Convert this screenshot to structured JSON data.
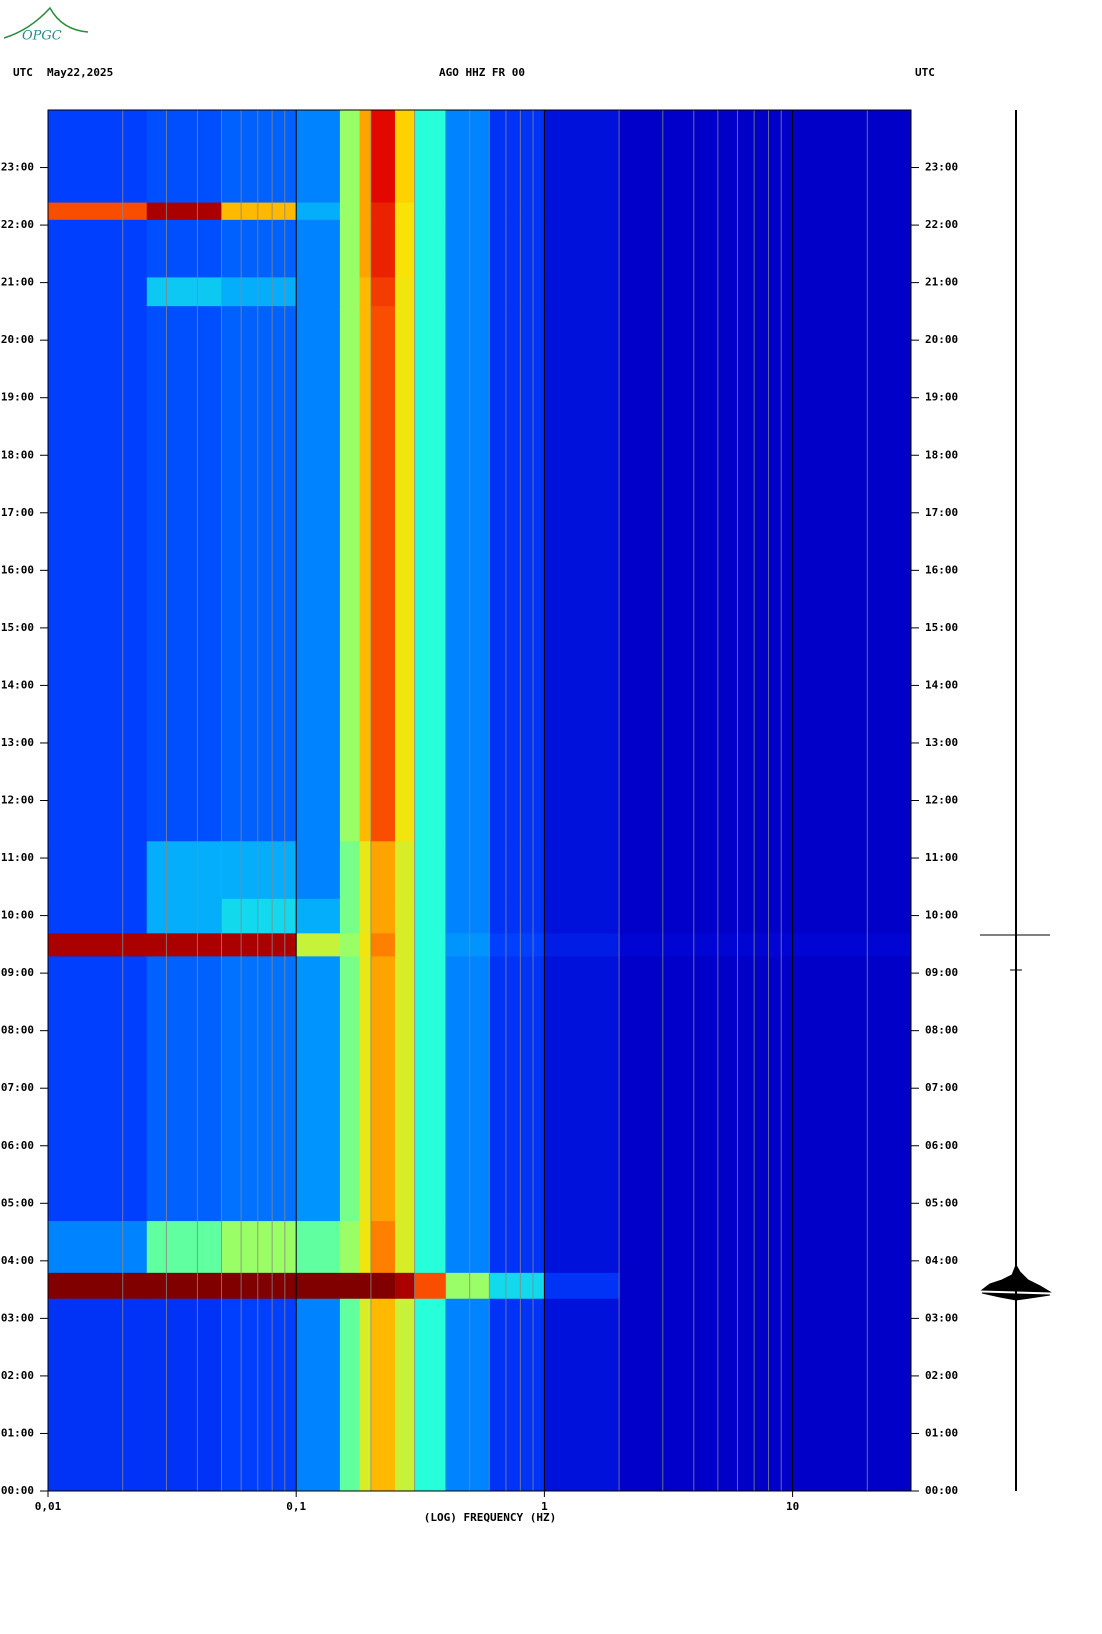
{
  "logo": "OPGC",
  "chart_data": {
    "type": "heatmap",
    "title": "AGO HHZ FR 00",
    "left_label": "UTC",
    "date": "May22,2025",
    "right_label": "UTC",
    "x_label": "(LOG) FREQUENCY (HZ)",
    "log_x": true,
    "xlim": [
      0.01,
      30
    ],
    "xticks": [
      {
        "value": 0.01,
        "label": "0,01"
      },
      {
        "value": 0.1,
        "label": "0,1"
      },
      1,
      10
    ],
    "xminorticks": [
      0.02,
      0.03,
      0.04,
      0.05,
      0.06,
      0.07,
      0.08,
      0.09,
      0.2,
      0.3,
      0.4,
      0.5,
      0.6,
      0.7,
      0.8,
      0.9,
      2,
      3,
      4,
      5,
      6,
      7,
      8,
      9,
      20
    ],
    "ylim": [
      0,
      24
    ],
    "yticks": [
      {
        "value": 0,
        "label": "00:00"
      },
      {
        "value": 1,
        "label": "01:00"
      },
      {
        "value": 2,
        "label": "02:00"
      },
      {
        "value": 3,
        "label": "03:00"
      },
      {
        "value": 4,
        "label": "04:00"
      },
      {
        "value": 5,
        "label": "05:00"
      },
      {
        "value": 6,
        "label": "06:00"
      },
      {
        "value": 7,
        "label": "07:00"
      },
      {
        "value": 8,
        "label": "08:00"
      },
      {
        "value": 9,
        "label": "09:00"
      },
      {
        "value": 10,
        "label": "10:00"
      },
      {
        "value": 11,
        "label": "11:00"
      },
      {
        "value": 12,
        "label": "12:00"
      },
      {
        "value": 13,
        "label": "13:00"
      },
      {
        "value": 14,
        "label": "14:00"
      },
      {
        "value": 15,
        "label": "15:00"
      },
      {
        "value": 16,
        "label": "16:00"
      },
      {
        "value": 17,
        "label": "17:00"
      },
      {
        "value": 18,
        "label": "18:00"
      },
      {
        "value": 19,
        "label": "19:00"
      },
      {
        "value": 20,
        "label": "20:00"
      },
      {
        "value": 21,
        "label": "21:00"
      },
      {
        "value": 22,
        "label": "22:00"
      },
      {
        "value": 23,
        "label": "23:00"
      }
    ],
    "colorscale": [
      "#00007f",
      "#0000d0",
      "#0040ff",
      "#00a0ff",
      "#20ffdf",
      "#a0ff60",
      "#ffe000",
      "#ff6000",
      "#e00000",
      "#800000"
    ],
    "x_edges": [
      0.01,
      0.025,
      0.05,
      0.1,
      0.15,
      0.18,
      0.2,
      0.25,
      0.3,
      0.4,
      0.6,
      1,
      2,
      30
    ],
    "y_edges": [
      0,
      3.35,
      3.8,
      4.7,
      9.3,
      9.7,
      10.3,
      11.3,
      20.6,
      21.1,
      22.1,
      22.4,
      24
    ],
    "z": [
      [
        0.2,
        0.2,
        0.22,
        0.3,
        0.5,
        0.62,
        0.7,
        0.6,
        0.45,
        0.3,
        0.2,
        0.14,
        0.1
      ],
      [
        1,
        1,
        1,
        1,
        1,
        1,
        1,
        0.95,
        0.8,
        0.55,
        0.4,
        0.2,
        0.1
      ],
      [
        0.3,
        0.5,
        0.55,
        0.5,
        0.55,
        0.65,
        0.75,
        0.62,
        0.45,
        0.3,
        0.2,
        0.14,
        0.1
      ],
      [
        0.22,
        0.26,
        0.28,
        0.32,
        0.52,
        0.64,
        0.72,
        0.62,
        0.45,
        0.3,
        0.2,
        0.14,
        0.1
      ],
      [
        0.95,
        0.95,
        0.95,
        0.6,
        0.55,
        0.65,
        0.75,
        0.62,
        0.45,
        0.32,
        0.22,
        0.16,
        0.12
      ],
      [
        0.22,
        0.35,
        0.4,
        0.35,
        0.52,
        0.64,
        0.72,
        0.62,
        0.45,
        0.3,
        0.2,
        0.14,
        0.1
      ],
      [
        0.22,
        0.35,
        0.35,
        0.3,
        0.52,
        0.64,
        0.72,
        0.62,
        0.45,
        0.3,
        0.2,
        0.14,
        0.1
      ],
      [
        0.22,
        0.24,
        0.26,
        0.3,
        0.55,
        0.7,
        0.8,
        0.65,
        0.45,
        0.3,
        0.2,
        0.14,
        0.1
      ],
      [
        0.22,
        0.38,
        0.35,
        0.3,
        0.55,
        0.7,
        0.82,
        0.65,
        0.45,
        0.3,
        0.2,
        0.14,
        0.1
      ],
      [
        0.22,
        0.24,
        0.26,
        0.3,
        0.55,
        0.72,
        0.85,
        0.66,
        0.45,
        0.3,
        0.2,
        0.14,
        0.1
      ],
      [
        0.8,
        0.95,
        0.7,
        0.35,
        0.55,
        0.72,
        0.85,
        0.66,
        0.45,
        0.3,
        0.2,
        0.14,
        0.1
      ],
      [
        0.22,
        0.24,
        0.26,
        0.3,
        0.55,
        0.72,
        0.88,
        0.68,
        0.45,
        0.3,
        0.2,
        0.14,
        0.1
      ]
    ]
  }
}
